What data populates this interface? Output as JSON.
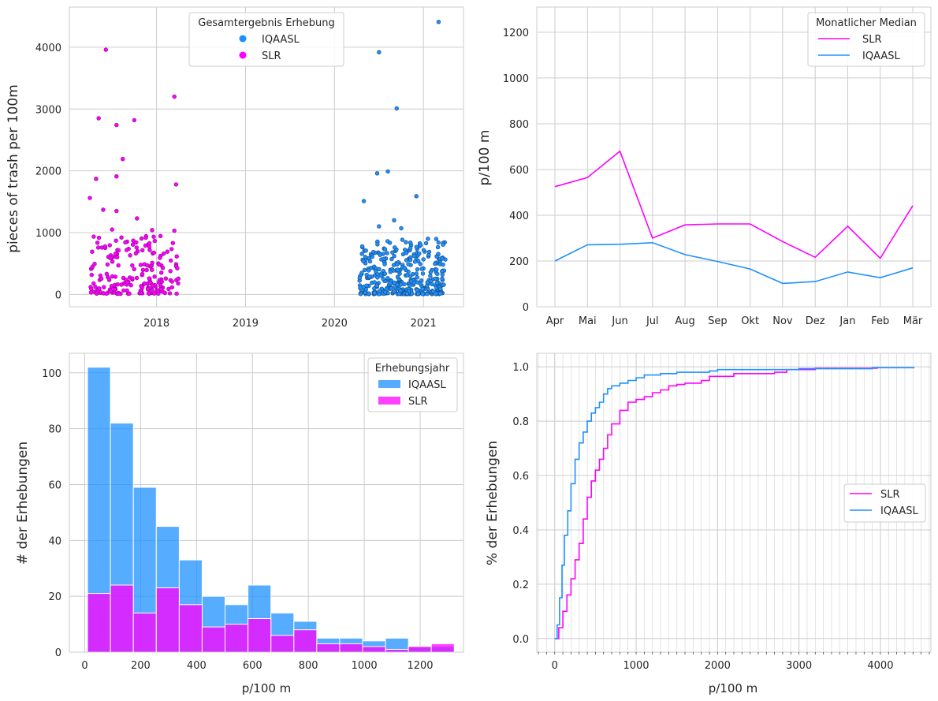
{
  "colors": {
    "iqaasl": "#1e90ff",
    "slr": "#ff00ff",
    "grid": "#cccccc",
    "frame": "#cccccc"
  },
  "chart_data": [
    {
      "type": "scatter",
      "ylabel": "pieces of trash per 100m",
      "xlabel": "",
      "xticks": [
        "2018",
        "2019",
        "2020",
        "2021"
      ],
      "ylim": [
        -200,
        4650
      ],
      "yticks": [
        0,
        1000,
        2000,
        3000,
        4000
      ],
      "grid": true,
      "legend": {
        "title": "Gesamtergebnis Erhebung",
        "entries": [
          "IQAASL",
          "SLR"
        ],
        "placement": "top-center"
      },
      "series": [
        {
          "name": "SLR",
          "note_points": "highlighted outliers (year, value)",
          "outliers": [
            [
              2017.43,
              3960
            ],
            [
              2017.35,
              2850
            ],
            [
              2017.55,
              2740
            ],
            [
              2017.75,
              2820
            ],
            [
              2018.2,
              3200
            ],
            [
              2017.62,
              2190
            ],
            [
              2017.32,
              1870
            ],
            [
              2017.55,
              1910
            ],
            [
              2018.22,
              1780
            ],
            [
              2017.25,
              1560
            ],
            [
              2017.4,
              1370
            ],
            [
              2017.55,
              1350
            ],
            [
              2017.78,
              1230
            ],
            [
              2017.5,
              1050
            ],
            [
              2017.95,
              1040
            ],
            [
              2018.2,
              1030
            ]
          ],
          "bulk_range": {
            "x": [
              2017.25,
              2018.25
            ],
            "y": [
              10,
              950
            ],
            "count": 200
          }
        },
        {
          "name": "IQAASL",
          "outliers": [
            [
              2021.17,
              4410
            ],
            [
              2020.5,
              3920
            ],
            [
              2020.7,
              3010
            ],
            [
              2020.6,
              1990
            ],
            [
              2020.48,
              1960
            ],
            [
              2020.92,
              1590
            ],
            [
              2020.33,
              1510
            ],
            [
              2020.67,
              1200
            ],
            [
              2020.75,
              1070
            ],
            [
              2020.5,
              1100
            ],
            [
              2021.05,
              900
            ]
          ],
          "bulk_range": {
            "x": [
              2020.28,
              2021.25
            ],
            "y": [
              5,
              900
            ],
            "count": 360
          }
        }
      ]
    },
    {
      "type": "line",
      "ylabel": "p/100 m",
      "xlabel": "",
      "categories": [
        "Apr",
        "Mai",
        "Jun",
        "Jul",
        "Aug",
        "Sep",
        "Okt",
        "Nov",
        "Dez",
        "Jan",
        "Feb",
        "Mär"
      ],
      "ylim": [
        0,
        1310
      ],
      "yticks": [
        0,
        200,
        400,
        600,
        800,
        1000,
        1200
      ],
      "grid": true,
      "legend": {
        "title": "Monatlicher Median",
        "entries": [
          "SLR",
          "IQAASL"
        ],
        "placement": "top-right"
      },
      "series": [
        {
          "name": "SLR",
          "values": [
            525,
            565,
            680,
            300,
            358,
            362,
            362,
            285,
            216,
            352,
            212,
            442
          ]
        },
        {
          "name": "IQAASL",
          "values": [
            200,
            271,
            273,
            280,
            228,
            198,
            165,
            102,
            110,
            152,
            127,
            170
          ]
        }
      ]
    },
    {
      "type": "bar",
      "stacked": false,
      "ylabel": "# der Erhebungen",
      "xlabel": "p/100 m",
      "bin_width": 82,
      "bin_start": 10,
      "xlim": [
        -55,
        1355
      ],
      "xticks": [
        0,
        200,
        400,
        600,
        800,
        1000,
        1200
      ],
      "ylim": [
        0,
        107
      ],
      "yticks": [
        0,
        20,
        40,
        60,
        80,
        100
      ],
      "grid": true,
      "legend": {
        "title": "Erhebungsjahr",
        "entries": [
          "IQAASL",
          "SLR"
        ],
        "placement": "top-right"
      },
      "series": [
        {
          "name": "IQAASL",
          "values": [
            102,
            82,
            59,
            45,
            33,
            20,
            17,
            24,
            14,
            11,
            5,
            5,
            4,
            5,
            2,
            2
          ]
        },
        {
          "name": "SLR",
          "values": [
            21,
            24,
            14,
            23,
            17,
            9,
            10,
            12,
            6,
            8,
            3,
            3,
            2,
            1,
            2,
            3
          ]
        }
      ]
    },
    {
      "type": "line",
      "kind": "ecdf",
      "ylabel": "% der Erhebungen",
      "xlabel": "p/100 m",
      "xlim": [
        -220,
        4620
      ],
      "xticks": [
        0,
        1000,
        2000,
        3000,
        4000
      ],
      "ylim": [
        -0.05,
        1.05
      ],
      "yticks": [
        0.0,
        0.2,
        0.4,
        0.6,
        0.8,
        1.0
      ],
      "grid": true,
      "legend": {
        "entries": [
          "SLR",
          "IQAASL"
        ],
        "placement": "center-right"
      },
      "series": [
        {
          "name": "SLR",
          "points": [
            [
              0,
              0
            ],
            [
              50,
              0.04
            ],
            [
              100,
              0.1
            ],
            [
              150,
              0.16
            ],
            [
              200,
              0.22
            ],
            [
              250,
              0.29
            ],
            [
              300,
              0.35
            ],
            [
              350,
              0.44
            ],
            [
              400,
              0.52
            ],
            [
              450,
              0.58
            ],
            [
              500,
              0.62
            ],
            [
              550,
              0.66
            ],
            [
              600,
              0.7
            ],
            [
              650,
              0.75
            ],
            [
              700,
              0.79
            ],
            [
              800,
              0.84
            ],
            [
              900,
              0.87
            ],
            [
              1000,
              0.88
            ],
            [
              1100,
              0.89
            ],
            [
              1200,
              0.905
            ],
            [
              1300,
              0.915
            ],
            [
              1400,
              0.93
            ],
            [
              1500,
              0.935
            ],
            [
              1600,
              0.94
            ],
            [
              1800,
              0.95
            ],
            [
              1900,
              0.965
            ],
            [
              2200,
              0.975
            ],
            [
              2700,
              0.98
            ],
            [
              2850,
              0.99
            ],
            [
              3200,
              0.995
            ],
            [
              3960,
              1.0
            ]
          ]
        },
        {
          "name": "IQAASL",
          "points": [
            [
              0,
              0
            ],
            [
              30,
              0.05
            ],
            [
              60,
              0.15
            ],
            [
              90,
              0.27
            ],
            [
              120,
              0.38
            ],
            [
              160,
              0.47
            ],
            [
              200,
              0.57
            ],
            [
              250,
              0.66
            ],
            [
              300,
              0.72
            ],
            [
              350,
              0.76
            ],
            [
              400,
              0.8
            ],
            [
              450,
              0.83
            ],
            [
              500,
              0.85
            ],
            [
              550,
              0.87
            ],
            [
              600,
              0.9
            ],
            [
              650,
              0.92
            ],
            [
              700,
              0.93
            ],
            [
              800,
              0.94
            ],
            [
              900,
              0.95
            ],
            [
              1000,
              0.96
            ],
            [
              1100,
              0.97
            ],
            [
              1300,
              0.975
            ],
            [
              1500,
              0.98
            ],
            [
              1900,
              0.985
            ],
            [
              2000,
              0.99
            ],
            [
              3000,
              0.993
            ],
            [
              3900,
              0.997
            ],
            [
              4410,
              1.0
            ]
          ]
        }
      ]
    }
  ]
}
